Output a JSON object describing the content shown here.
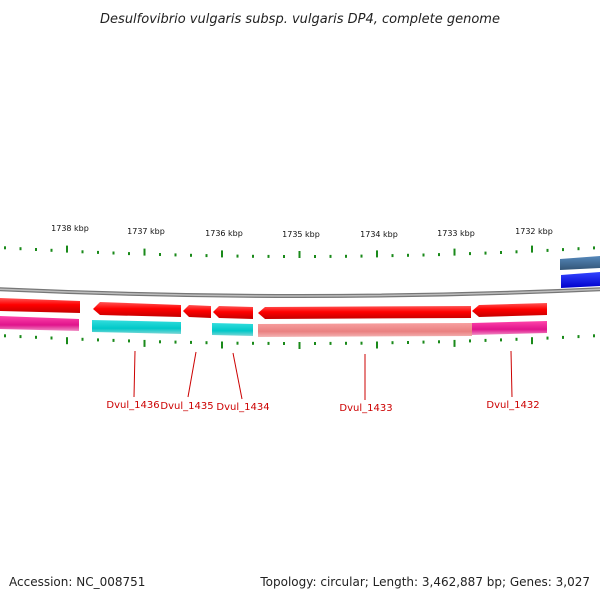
{
  "title": "Desulfovibrio vulgaris subsp. vulgaris DP4, complete genome",
  "footer": {
    "accession": "Accession: NC_008751",
    "summary": "Topology: circular; Length: 3,462,887 bp; Genes: 3,027"
  },
  "scale_labels": [
    "1738 kbp",
    "1737 kbp",
    "1736 kbp",
    "1735 kbp",
    "1734 kbp",
    "1733 kbp",
    "1732 kbp"
  ],
  "gene_labels": [
    "Dvul_1436",
    "Dvul_1435",
    "Dvul_1434",
    "Dvul_1433",
    "Dvul_1432"
  ],
  "colors": {
    "forward_cds": "#ff0000",
    "reverse_cds": "#dd0000",
    "cyan_feature": "#00cccc",
    "magenta_feature": "#ee1199",
    "pink_feature": "#ee8888",
    "blue_feature": "#0000ee",
    "tick": "#1a8a1a",
    "label": "#cc0000",
    "backbone": "#888888"
  }
}
